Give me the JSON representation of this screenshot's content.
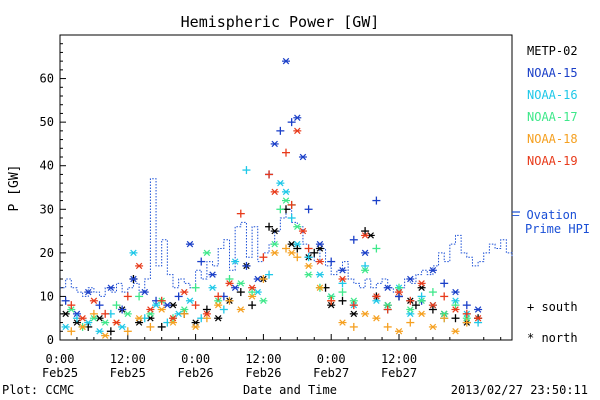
{
  "chart_data": {
    "type": "scatter",
    "title": "Hemispheric Power [GW]",
    "ylabel": "P [GW]",
    "xlabel": "Date and Time",
    "ylim": [
      0,
      70
    ],
    "xlim_hours": [
      0,
      80
    ],
    "y_ticks": [
      "0",
      "10",
      "20",
      "30",
      "40",
      "50",
      "60"
    ],
    "x_ticks": [
      {
        "time": "0:00",
        "date": "Feb25",
        "h": 0
      },
      {
        "time": "12:00",
        "date": "Feb25",
        "h": 12
      },
      {
        "time": "0:00",
        "date": "Feb26",
        "h": 24
      },
      {
        "time": "12:00",
        "date": "Feb26",
        "h": 36
      },
      {
        "time": "0:00",
        "date": "Feb27",
        "h": 48
      },
      {
        "time": "12:00",
        "date": "Feb27",
        "h": 60
      }
    ],
    "legend_position": "right",
    "marker_key": {
      "south": "+ south",
      "north": "* north"
    },
    "ovation": {
      "label_line1": "— Ovation",
      "label_line2": "Prime HPI",
      "color": "#1a4fd6",
      "x": [
        0,
        1,
        2,
        3,
        4,
        5,
        6,
        7,
        8,
        9,
        10,
        11,
        12,
        13,
        14,
        15,
        16,
        17,
        18,
        19,
        20,
        21,
        22,
        23,
        24,
        25,
        26,
        27,
        28,
        29,
        30,
        31,
        32,
        33,
        34,
        35,
        36,
        37,
        38,
        39,
        40,
        41,
        42,
        43,
        44,
        45,
        46,
        47,
        48,
        49,
        50,
        51,
        52,
        53,
        54,
        55,
        56,
        57,
        58,
        59,
        60,
        61,
        62,
        63,
        64,
        65,
        66,
        67,
        68,
        69,
        70,
        71,
        72,
        73,
        74,
        75,
        76,
        77,
        78,
        79,
        80
      ],
      "y": [
        12,
        14,
        12,
        11,
        10,
        12,
        11,
        10,
        12,
        11,
        13,
        11,
        12,
        13,
        11,
        14,
        37,
        17,
        23,
        15,
        12,
        14,
        13,
        12,
        16,
        14,
        18,
        17,
        21,
        23,
        16,
        26,
        27,
        19,
        26,
        18,
        20,
        22,
        25,
        28,
        30,
        27,
        26,
        22,
        20,
        18,
        21,
        17,
        15,
        16,
        18,
        14,
        13,
        12,
        14,
        12,
        13,
        14,
        12,
        11,
        12,
        14,
        13,
        15,
        16,
        15,
        17,
        20,
        18,
        22,
        24,
        20,
        19,
        17,
        18,
        20,
        22,
        21,
        23,
        20,
        19
      ]
    },
    "series": [
      {
        "name": "METP-02",
        "color": "#000000",
        "x": [
          1,
          3,
          5,
          7,
          9,
          11,
          13,
          14,
          16,
          18,
          20,
          22,
          24,
          26,
          28,
          30,
          32,
          33,
          34,
          36,
          37,
          38,
          40,
          41,
          42,
          44,
          45,
          46,
          47,
          48,
          50,
          52,
          54,
          55,
          56,
          58,
          60,
          62,
          63,
          64,
          66,
          68,
          70,
          72,
          74
        ],
        "y": [
          6,
          4,
          3,
          5,
          2,
          7,
          14,
          4,
          5,
          3,
          8,
          6,
          4,
          7,
          5,
          9,
          11,
          17,
          8,
          14,
          26,
          25,
          30,
          22,
          21,
          19,
          20,
          21,
          12,
          8,
          9,
          6,
          25,
          24,
          10,
          8,
          10,
          9,
          8,
          12,
          7,
          6,
          5,
          4,
          5
        ],
        "south": [
          0,
          0,
          1,
          0,
          1,
          0,
          1,
          0,
          0,
          1,
          0,
          1,
          0,
          1,
          0,
          0,
          1,
          0,
          1,
          0,
          1,
          0,
          1,
          0,
          1,
          0,
          1,
          0,
          1,
          0,
          1,
          0,
          1,
          0,
          1,
          0,
          1,
          0,
          1,
          0,
          1,
          0,
          1,
          0,
          1
        ]
      },
      {
        "name": "NOAA-15",
        "color": "#1a3fc8",
        "x": [
          1,
          3,
          5,
          7,
          9,
          11,
          13,
          15,
          17,
          19,
          21,
          23,
          25,
          27,
          29,
          31,
          33,
          35,
          37,
          38,
          39,
          40,
          41,
          42,
          43,
          44,
          46,
          48,
          50,
          52,
          54,
          56,
          58,
          60,
          62,
          64,
          66,
          68,
          70,
          72,
          74
        ],
        "y": [
          9,
          6,
          11,
          8,
          12,
          7,
          14,
          11,
          9,
          8,
          10,
          22,
          18,
          15,
          10,
          12,
          17,
          14,
          38,
          45,
          48,
          64,
          50,
          51,
          42,
          30,
          22,
          18,
          16,
          23,
          20,
          32,
          12,
          10,
          14,
          9,
          16,
          13,
          11,
          8,
          7
        ],
        "south": [
          1,
          0,
          0,
          1,
          0,
          1,
          0,
          0,
          1,
          0,
          1,
          0,
          1,
          0,
          1,
          0,
          1,
          0,
          1,
          0,
          1,
          0,
          1,
          0,
          0,
          1,
          0,
          1,
          0,
          1,
          0,
          1,
          0,
          1,
          0,
          1,
          0,
          1,
          0,
          1,
          0
        ]
      },
      {
        "name": "NOAA-16",
        "color": "#1ec8e8",
        "x": [
          1,
          3,
          5,
          7,
          9,
          11,
          13,
          15,
          17,
          19,
          21,
          23,
          25,
          27,
          29,
          31,
          33,
          35,
          37,
          39,
          40,
          41,
          42,
          44,
          46,
          48,
          50,
          52,
          54,
          56,
          58,
          60,
          62,
          64,
          66,
          68,
          70,
          72,
          74
        ],
        "y": [
          3,
          5,
          4,
          2,
          6,
          3,
          20,
          5,
          8,
          4,
          6,
          9,
          5,
          12,
          7,
          18,
          39,
          11,
          15,
          36,
          34,
          28,
          22,
          19,
          15,
          10,
          13,
          8,
          17,
          9,
          7,
          12,
          6,
          10,
          8,
          5,
          9,
          6,
          4
        ],
        "south": [
          0,
          1,
          0,
          0,
          1,
          0,
          0,
          1,
          0,
          1,
          0,
          0,
          1,
          0,
          1,
          0,
          1,
          0,
          1,
          0,
          0,
          1,
          0,
          1,
          0,
          0,
          1,
          0,
          1,
          0,
          1,
          0,
          0,
          1,
          0,
          1,
          0,
          0,
          1
        ]
      },
      {
        "name": "NOAA-17",
        "color": "#3ee88a",
        "x": [
          2,
          4,
          6,
          8,
          10,
          12,
          14,
          16,
          18,
          20,
          22,
          24,
          26,
          28,
          30,
          32,
          34,
          36,
          38,
          39,
          40,
          41,
          42,
          44,
          46,
          48,
          50,
          52,
          54,
          56,
          58,
          60,
          62,
          64,
          66,
          68,
          70,
          72
        ],
        "y": [
          7,
          3,
          5,
          4,
          8,
          6,
          10,
          6,
          9,
          5,
          7,
          12,
          20,
          9,
          14,
          13,
          11,
          9,
          22,
          30,
          32,
          31,
          26,
          15,
          12,
          10,
          11,
          9,
          16,
          21,
          8,
          12,
          7,
          9,
          11,
          6,
          8,
          5
        ],
        "south": [
          0,
          1,
          0,
          0,
          1,
          0,
          1,
          0,
          0,
          1,
          0,
          1,
          0,
          0,
          1,
          0,
          1,
          0,
          0,
          1,
          0,
          1,
          0,
          0,
          1,
          0,
          1,
          0,
          0,
          1,
          0,
          1,
          0,
          0,
          1,
          0,
          1,
          0
        ]
      },
      {
        "name": "NOAA-18",
        "color": "#f5a020",
        "x": [
          2,
          4,
          6,
          8,
          10,
          12,
          14,
          16,
          18,
          20,
          22,
          24,
          26,
          28,
          30,
          32,
          34,
          36,
          38,
          40,
          41,
          42,
          44,
          46,
          48,
          50,
          52,
          54,
          56,
          58,
          60,
          62,
          64,
          66,
          68,
          70,
          72
        ],
        "y": [
          2,
          3,
          6,
          1,
          4,
          2,
          5,
          3,
          7,
          4,
          6,
          3,
          5,
          8,
          9,
          7,
          10,
          14,
          20,
          21,
          20,
          19,
          17,
          12,
          9,
          4,
          3,
          6,
          5,
          3,
          2,
          4,
          6,
          3,
          5,
          2,
          4
        ],
        "south": [
          1,
          0,
          1,
          0,
          0,
          1,
          0,
          1,
          0,
          0,
          1,
          0,
          1,
          0,
          1,
          0,
          0,
          1,
          0,
          1,
          0,
          1,
          0,
          0,
          1,
          0,
          1,
          0,
          0,
          1,
          0,
          1,
          0,
          0,
          1,
          0,
          1
        ]
      },
      {
        "name": "NOAA-19",
        "color": "#e83a1a",
        "x": [
          2,
          4,
          6,
          8,
          10,
          12,
          14,
          16,
          18,
          20,
          22,
          24,
          26,
          28,
          30,
          32,
          34,
          36,
          37,
          38,
          40,
          41,
          42,
          43,
          44,
          46,
          48,
          50,
          52,
          54,
          56,
          58,
          60,
          62,
          64,
          66,
          68,
          70,
          72,
          74
        ],
        "y": [
          8,
          5,
          9,
          6,
          4,
          10,
          17,
          7,
          9,
          5,
          11,
          8,
          6,
          10,
          13,
          29,
          12,
          19,
          38,
          34,
          43,
          31,
          48,
          25,
          21,
          18,
          9,
          14,
          8,
          24,
          10,
          7,
          11,
          9,
          13,
          8,
          10,
          7,
          6,
          5
        ],
        "south": [
          1,
          0,
          0,
          1,
          0,
          1,
          0,
          0,
          1,
          0,
          0,
          1,
          0,
          1,
          0,
          1,
          0,
          1,
          1,
          0,
          1,
          1,
          0,
          0,
          1,
          0,
          1,
          0,
          1,
          0,
          0,
          1,
          0,
          1,
          0,
          0,
          1,
          0,
          1,
          0
        ]
      }
    ]
  },
  "footer": {
    "plot_credit": "Plot: CCMC",
    "timestamp": "2013/02/27 23:50:11"
  }
}
